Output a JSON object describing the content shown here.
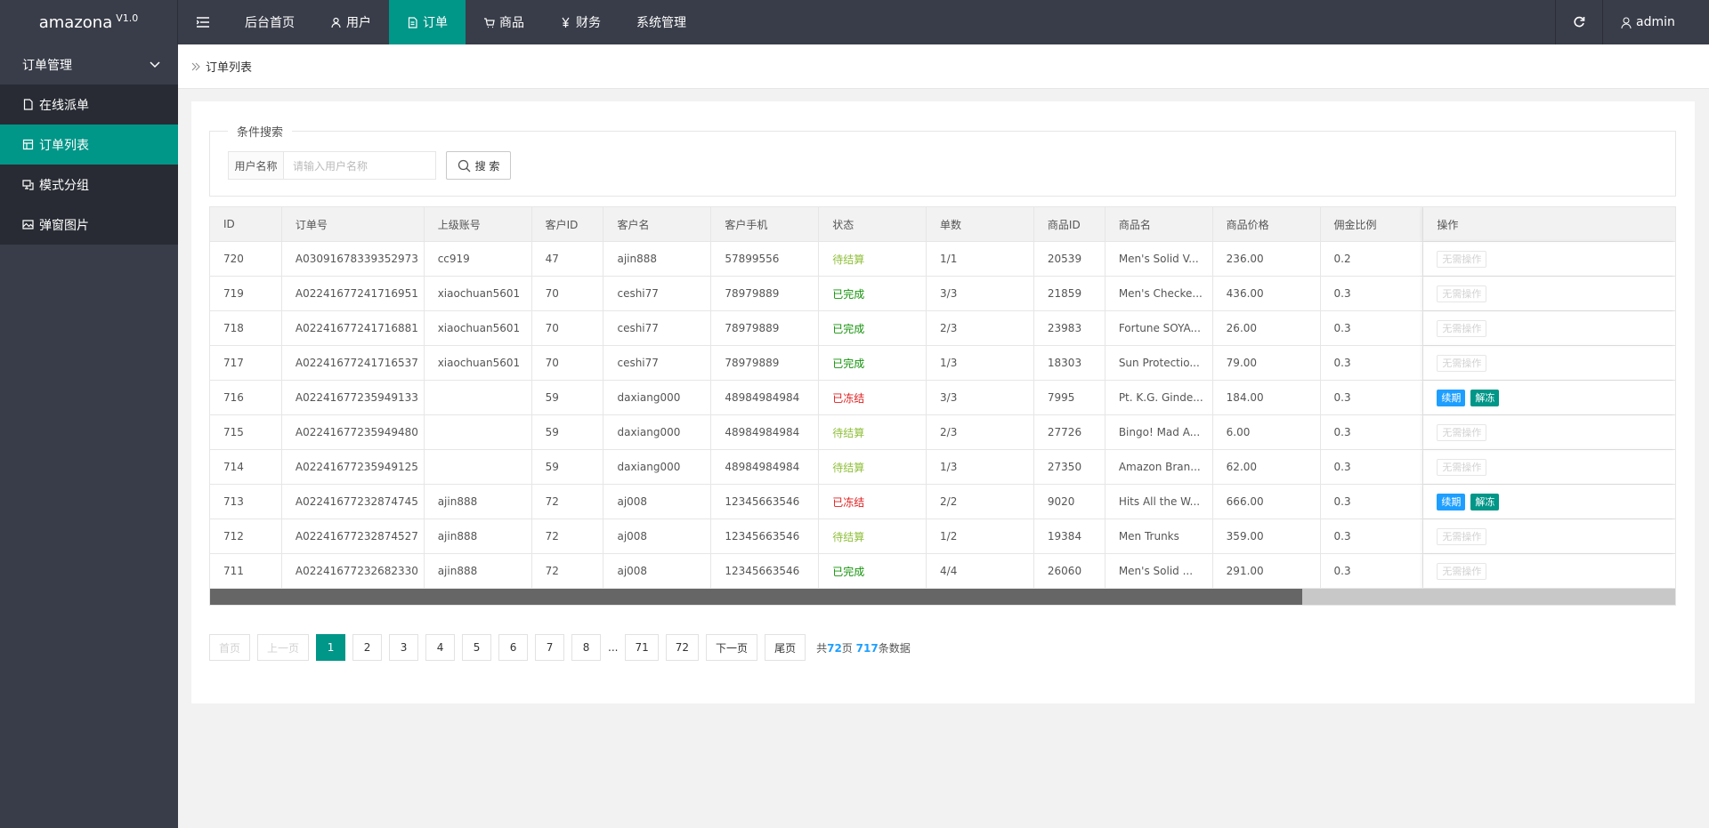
{
  "header": {
    "logo": "amazona",
    "version": "V1.0",
    "nav": [
      "后台首页",
      "用户",
      "订单",
      "商品",
      "财务",
      "系统管理"
    ],
    "active_nav": 2,
    "user": "admin"
  },
  "sidebar": {
    "group": "订单管理",
    "items": [
      "在线派单",
      "订单列表",
      "模式分组",
      "弹窗图片"
    ],
    "active": 1
  },
  "breadcrumb": "订单列表",
  "search": {
    "legend": "条件搜索",
    "label": "用户名称",
    "placeholder": "请输入用户名称",
    "button": "搜 索"
  },
  "table": {
    "columns": [
      "ID",
      "订单号",
      "上级账号",
      "客户ID",
      "客户名",
      "客户手机",
      "状态",
      "单数",
      "商品ID",
      "商品名",
      "商品价格",
      "佣金比例",
      "操作"
    ],
    "rows": [
      {
        "cells": [
          "720",
          "A03091678339352973",
          "cc919",
          "47",
          "ajin888",
          "57899556",
          "待结算",
          "1/1",
          "20539",
          "Men's Solid V...",
          "236.00",
          "0.2"
        ],
        "status_color": "#8fbf3a",
        "actions": [
          {
            "label": "无需操作",
            "disabled": true
          }
        ]
      },
      {
        "cells": [
          "719",
          "A02241677241716951",
          "xiaochuan5601",
          "70",
          "ceshi77",
          "78979889",
          "已完成",
          "3/3",
          "21859",
          "Men's Checke...",
          "436.00",
          "0.3"
        ],
        "status_color": "#14930a",
        "actions": [
          {
            "label": "无需操作",
            "disabled": true
          }
        ]
      },
      {
        "cells": [
          "718",
          "A02241677241716881",
          "xiaochuan5601",
          "70",
          "ceshi77",
          "78979889",
          "已完成",
          "2/3",
          "23983",
          "Fortune SOYA...",
          "26.00",
          "0.3"
        ],
        "status_color": "#14930a",
        "actions": [
          {
            "label": "无需操作",
            "disabled": true
          }
        ]
      },
      {
        "cells": [
          "717",
          "A02241677241716537",
          "xiaochuan5601",
          "70",
          "ceshi77",
          "78979889",
          "已完成",
          "1/3",
          "18303",
          "Sun Protectio...",
          "79.00",
          "0.3"
        ],
        "status_color": "#14930a",
        "actions": [
          {
            "label": "无需操作",
            "disabled": true
          }
        ]
      },
      {
        "cells": [
          "716",
          "A02241677235949133",
          "",
          "59",
          "daxiang000",
          "48984984984",
          "已冻结",
          "3/3",
          "7995",
          "Pt. K.G. Ginde...",
          "184.00",
          "0.3"
        ],
        "status_color": "#e02020",
        "actions": [
          {
            "label": "续期",
            "color": "#1E9FFF"
          },
          {
            "label": "解冻",
            "color": "#009688"
          }
        ]
      },
      {
        "cells": [
          "715",
          "A02241677235949480",
          "",
          "59",
          "daxiang000",
          "48984984984",
          "待结算",
          "2/3",
          "27726",
          "Bingo! Mad A...",
          "6.00",
          "0.3"
        ],
        "status_color": "#8fbf3a",
        "actions": [
          {
            "label": "无需操作",
            "disabled": true
          }
        ]
      },
      {
        "cells": [
          "714",
          "A02241677235949125",
          "",
          "59",
          "daxiang000",
          "48984984984",
          "待结算",
          "1/3",
          "27350",
          "Amazon Bran...",
          "62.00",
          "0.3"
        ],
        "status_color": "#8fbf3a",
        "actions": [
          {
            "label": "无需操作",
            "disabled": true
          }
        ]
      },
      {
        "cells": [
          "713",
          "A02241677232874745",
          "ajin888",
          "72",
          "aj008",
          "12345663546",
          "已冻结",
          "2/2",
          "9020",
          "Hits All the W...",
          "666.00",
          "0.3"
        ],
        "status_color": "#e02020",
        "actions": [
          {
            "label": "续期",
            "color": "#1E9FFF"
          },
          {
            "label": "解冻",
            "color": "#009688"
          }
        ]
      },
      {
        "cells": [
          "712",
          "A02241677232874527",
          "ajin888",
          "72",
          "aj008",
          "12345663546",
          "待结算",
          "1/2",
          "19384",
          "Men Trunks",
          "359.00",
          "0.3"
        ],
        "status_color": "#8fbf3a",
        "actions": [
          {
            "label": "无需操作",
            "disabled": true
          }
        ]
      },
      {
        "cells": [
          "711",
          "A02241677232682330",
          "ajin888",
          "72",
          "aj008",
          "12345663546",
          "已完成",
          "4/4",
          "26060",
          "Men's Solid ...",
          "291.00",
          "0.3"
        ],
        "status_color": "#14930a",
        "actions": [
          {
            "label": "无需操作",
            "disabled": true
          }
        ]
      }
    ]
  },
  "pagination": {
    "buttons": [
      {
        "label": "首页",
        "disabled": true
      },
      {
        "label": "上一页",
        "disabled": true
      },
      {
        "label": "1",
        "current": true
      },
      {
        "label": "2"
      },
      {
        "label": "3"
      },
      {
        "label": "4"
      },
      {
        "label": "5"
      },
      {
        "label": "6"
      },
      {
        "label": "7"
      },
      {
        "label": "8"
      },
      {
        "label": "...",
        "ellipsis": true
      },
      {
        "label": "71"
      },
      {
        "label": "72"
      },
      {
        "label": "下一页"
      },
      {
        "label": "尾页"
      }
    ],
    "summary": {
      "prefix": "共",
      "pages": "72",
      "pages_unit": "页",
      "total": "717",
      "total_unit": "条数据"
    }
  }
}
